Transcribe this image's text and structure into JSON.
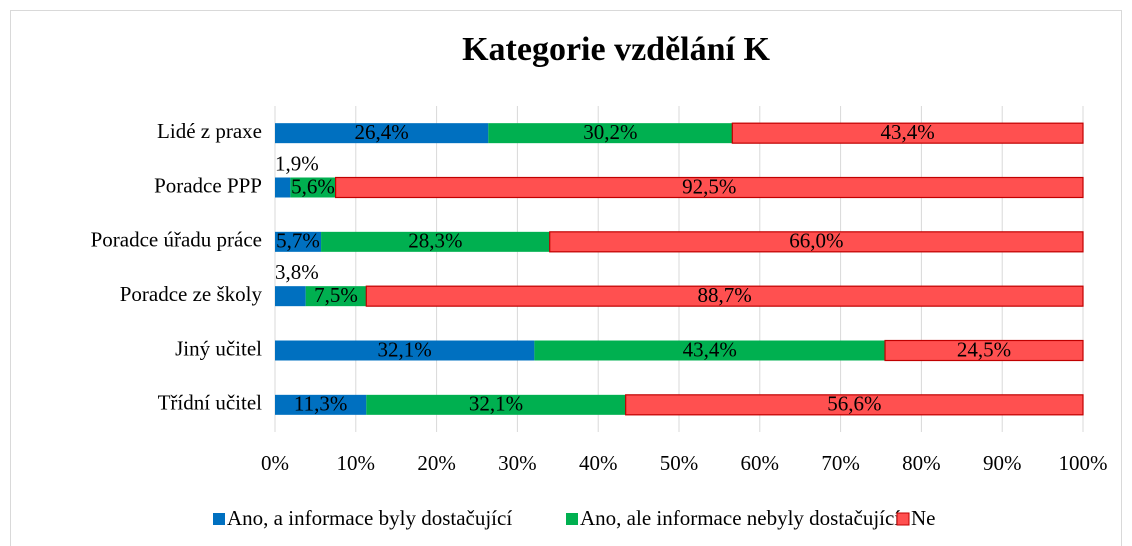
{
  "chart_data": {
    "type": "stacked_barh",
    "title": "Kategorie vzdělání K",
    "categories": [
      "Lidé z praxe",
      "Poradce PPP",
      "Poradce úřadu práce",
      "Poradce ze školy",
      "Jiný učitel",
      "Třídní učitel"
    ],
    "series": [
      {
        "name": "Ano, a informace byly dostačující",
        "color": "#0070c0",
        "values": [
          26.4,
          1.9,
          5.7,
          3.8,
          32.1,
          11.3
        ],
        "value_labels": [
          "26,4%",
          "1,9%",
          "5,7%",
          "3,8%",
          "32,1%",
          "11,3%"
        ]
      },
      {
        "name": "Ano, ale informace nebyly dostačující",
        "color": "#00b050",
        "values": [
          30.2,
          5.6,
          28.3,
          7.5,
          43.4,
          32.1
        ],
        "value_labels": [
          "30,2%",
          "5,6%",
          "28,3%",
          "7,5%",
          "43,4%",
          "32,1%"
        ]
      },
      {
        "name": "Ne",
        "color": "#ff5050",
        "edgecolor": "#c00000",
        "values": [
          43.4,
          92.5,
          66.0,
          88.7,
          24.5,
          56.6
        ],
        "value_labels": [
          "43,4%",
          "92,5%",
          "66,0%",
          "88,7%",
          "24,5%",
          "56,6%"
        ]
      }
    ],
    "xlim": [
      0,
      100
    ],
    "xticks": [
      {
        "value": 0,
        "label": "0%"
      },
      {
        "value": 10,
        "label": "10%"
      },
      {
        "value": 20,
        "label": "20%"
      },
      {
        "value": 30,
        "label": "30%"
      },
      {
        "value": 40,
        "label": "40%"
      },
      {
        "value": 50,
        "label": "50%"
      },
      {
        "value": 60,
        "label": "60%"
      },
      {
        "value": 70,
        "label": "70%"
      },
      {
        "value": 80,
        "label": "80%"
      },
      {
        "value": 90,
        "label": "90%"
      },
      {
        "value": 100,
        "label": "100%"
      }
    ],
    "grid": true,
    "legend": "bottom"
  }
}
